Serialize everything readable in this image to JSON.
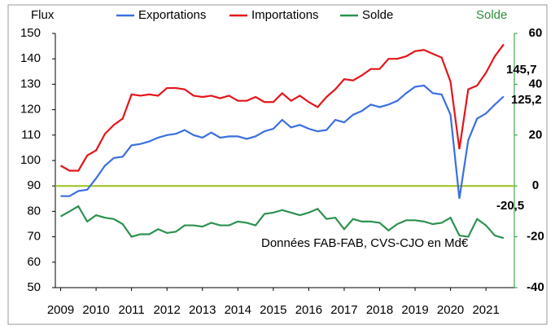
{
  "chart_data": {
    "type": "line",
    "y_label": "Flux",
    "y2_label": "Solde",
    "x": [
      2009,
      2009.25,
      2009.5,
      2009.75,
      2010,
      2010.25,
      2010.5,
      2010.75,
      2011,
      2011.25,
      2011.5,
      2011.75,
      2012,
      2012.25,
      2012.5,
      2012.75,
      2013,
      2013.25,
      2013.5,
      2013.75,
      2014,
      2014.25,
      2014.5,
      2014.75,
      2015,
      2015.25,
      2015.5,
      2015.75,
      2016,
      2016.25,
      2016.5,
      2016.75,
      2017,
      2017.25,
      2017.5,
      2017.75,
      2018,
      2018.25,
      2018.5,
      2018.75,
      2019,
      2019.25,
      2019.5,
      2019.75,
      2020,
      2020.25,
      2020.5,
      2020.75,
      2021,
      2021.25,
      2021.5
    ],
    "series": [
      {
        "name": "Exportations",
        "color": "#3b6fe0",
        "values": [
          86,
          86,
          88,
          88.5,
          93,
          98,
          101,
          101.5,
          106,
          106.5,
          107.5,
          109,
          110,
          110.5,
          112,
          110,
          109,
          111,
          109,
          109.5,
          109.5,
          108.5,
          109.5,
          111.5,
          112.5,
          116,
          113,
          114,
          112.5,
          111.5,
          112,
          116,
          115,
          118,
          119.5,
          122,
          121,
          122,
          123.5,
          126.5,
          129,
          129.5,
          126.5,
          126,
          118,
          85,
          108,
          116.5,
          118.5,
          122,
          125.2
        ]
      },
      {
        "name": "Importations",
        "color": "#e3151a",
        "values": [
          98,
          96,
          96,
          102,
          104,
          110.5,
          114,
          116.5,
          126,
          125.5,
          126,
          125.5,
          128.5,
          128.5,
          128,
          125.5,
          125,
          125.5,
          124.5,
          125.5,
          123.5,
          123.5,
          125,
          123,
          123,
          126.5,
          123.5,
          125.5,
          123,
          121,
          125,
          128,
          132,
          131.5,
          133.5,
          136,
          136,
          140,
          140,
          141,
          143,
          143.5,
          142,
          140.5,
          131,
          104.5,
          128,
          129.5,
          134.5,
          141,
          145.7
        ]
      },
      {
        "name": "Solde",
        "color": "#2e9150",
        "axis": "y2",
        "values": [
          -12,
          -10,
          -8,
          -14,
          -11.5,
          -12.5,
          -13,
          -15,
          -20,
          -19,
          -19,
          -17,
          -18.5,
          -18,
          -15.5,
          -15.5,
          -16,
          -14.5,
          -15.5,
          -15.5,
          -14,
          -14.5,
          -15.5,
          -11,
          -10.5,
          -9.5,
          -10.5,
          -11.5,
          -10.5,
          -9,
          -13,
          -12.5,
          -17,
          -13,
          -14,
          -14,
          -14.5,
          -17.5,
          -15,
          -13.5,
          -13.5,
          -14,
          -15,
          -14.5,
          -12.5,
          -19.5,
          -20,
          -13,
          -15.5,
          -19.5,
          -20.5
        ]
      }
    ],
    "annotations": [
      {
        "text": "145,7",
        "series": 1
      },
      {
        "text": "125,2",
        "series": 0
      },
      {
        "text": "-20,5",
        "series": 2
      },
      {
        "text": "Données FAB-FAB, CVS-CJO en Md€"
      }
    ],
    "xlim": [
      2008.85,
      2021.8
    ],
    "xticks": [
      2009,
      2010,
      2011,
      2012,
      2013,
      2014,
      2015,
      2016,
      2017,
      2018,
      2019,
      2020,
      2021
    ],
    "ylim": [
      50,
      150
    ],
    "yticks": [
      50,
      60,
      70,
      80,
      90,
      100,
      110,
      120,
      130,
      140,
      150
    ],
    "y2lim": [
      -40,
      60
    ],
    "y2ticks": [
      -40,
      -20,
      0,
      20,
      40,
      60
    ],
    "y2_color": "#1f9a2a",
    "zero_line_color": "#9bc31c",
    "legend": "top"
  }
}
